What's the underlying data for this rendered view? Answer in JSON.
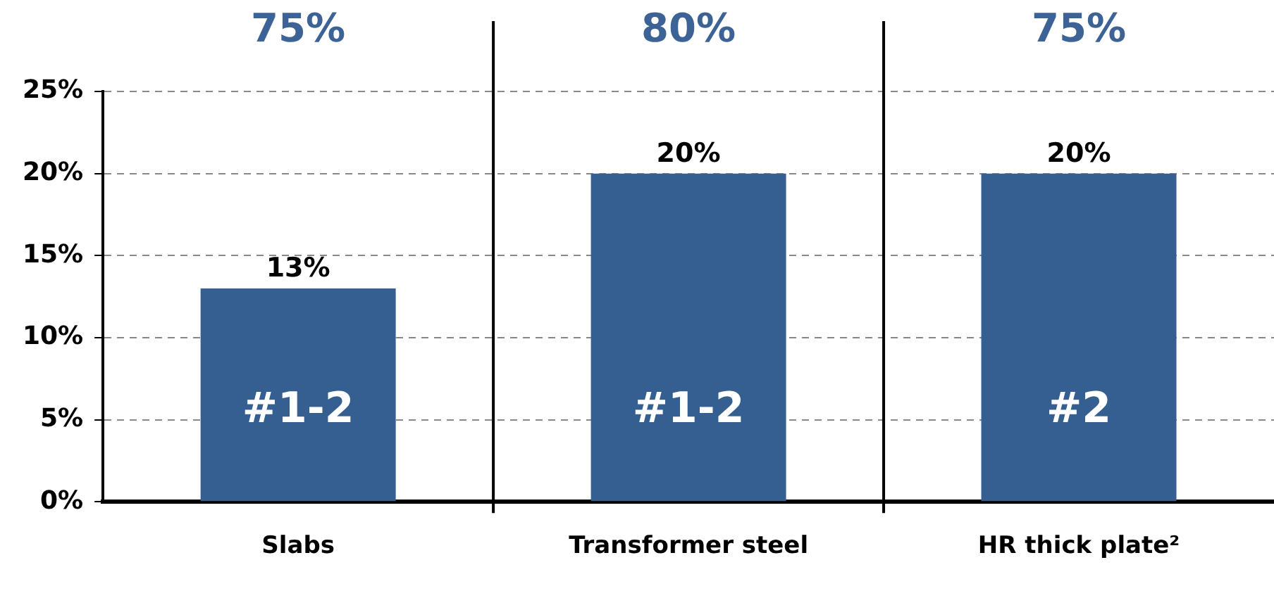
{
  "chart_data": {
    "type": "bar",
    "categories": [
      "Slabs",
      "Transformer steel",
      "HR thick plate²"
    ],
    "values": [
      13,
      20,
      20
    ],
    "color": "#365f91",
    "value_labels": [
      "13%",
      "20%",
      "20%"
    ],
    "ylim": [
      0,
      25
    ],
    "yticks": [
      {
        "value": 0,
        "label": "0%"
      },
      {
        "value": 5,
        "label": "5%"
      },
      {
        "value": 10,
        "label": "10%"
      },
      {
        "value": 15,
        "label": "15%"
      },
      {
        "value": 20,
        "label": "20%"
      },
      {
        "value": 25,
        "label": "25%"
      }
    ],
    "grid": "y",
    "annotations": [
      "75%",
      "80%",
      "75%",
      "#1-2",
      "#1-2",
      "#2"
    ]
  }
}
